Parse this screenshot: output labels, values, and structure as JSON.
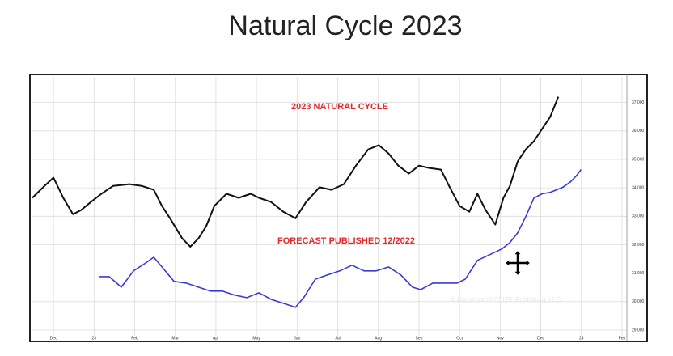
{
  "chart_data": {
    "type": "line",
    "title": "Natural Cycle 2023",
    "annotations": [
      "2023 NATURAL CYCLE",
      "FORECAST PUBLISHED 12/2022",
      "© Copyright 2023 LBL Publishing, LLC"
    ],
    "xlim": [
      -0.58,
      14.12
    ],
    "ylim": [
      28800,
      37900
    ],
    "grid": true,
    "xticks": [
      {
        "value": 0,
        "label": "Dec"
      },
      {
        "value": 1,
        "label": "23"
      },
      {
        "value": 2,
        "label": "Feb"
      },
      {
        "value": 3,
        "label": "Mar"
      },
      {
        "value": 4,
        "label": "Apr"
      },
      {
        "value": 5,
        "label": "May"
      },
      {
        "value": 6,
        "label": "Jun"
      },
      {
        "value": 7,
        "label": "Jul"
      },
      {
        "value": 8,
        "label": "Aug"
      },
      {
        "value": 9,
        "label": "Sep"
      },
      {
        "value": 10,
        "label": "Oct"
      },
      {
        "value": 11,
        "label": "Nov"
      },
      {
        "value": 12,
        "label": "Dec"
      },
      {
        "value": 13,
        "label": "24"
      },
      {
        "value": 14,
        "label": "Feb"
      }
    ],
    "yticks": [
      {
        "value": 29000,
        "label": "29,000"
      },
      {
        "value": 30000,
        "label": "30,000"
      },
      {
        "value": 31000,
        "label": "31,000"
      },
      {
        "value": 32000,
        "label": "32,000"
      },
      {
        "value": 33000,
        "label": "33,000"
      },
      {
        "value": 34000,
        "label": "34,000"
      },
      {
        "value": 35000,
        "label": "35,000"
      },
      {
        "value": 36000,
        "label": "36,000"
      },
      {
        "value": 37000,
        "label": "37,000"
      }
    ],
    "series": [
      {
        "color": "#111111",
        "x": [
          -0.52,
          -0.22,
          0,
          0.24,
          0.48,
          0.68,
          0.92,
          1.18,
          1.47,
          1.87,
          2.17,
          2.47,
          2.67,
          2.87,
          3.17,
          3.37,
          3.57,
          3.76,
          3.96,
          4.26,
          4.56,
          4.86,
          5.06,
          5.36,
          5.66,
          5.96,
          6.22,
          6.55,
          6.85,
          7.15,
          7.45,
          7.75,
          8.01,
          8.25,
          8.49,
          8.75,
          9.0,
          9.24,
          9.54,
          9.74,
          10.0,
          10.24,
          10.44,
          10.64,
          10.88,
          11.08,
          11.24,
          11.43,
          11.63,
          11.83,
          12.03,
          12.23,
          12.43
        ],
        "values": [
          33650,
          34070,
          34360,
          33650,
          33070,
          33220,
          33500,
          33790,
          34070,
          34130,
          34070,
          33930,
          33360,
          32930,
          32220,
          31930,
          32220,
          32650,
          33360,
          33790,
          33650,
          33790,
          33650,
          33500,
          33160,
          32930,
          33500,
          34020,
          33930,
          34130,
          34780,
          35350,
          35500,
          35210,
          34780,
          34500,
          34780,
          34700,
          34640,
          34070,
          33360,
          33160,
          33790,
          33220,
          32710,
          33650,
          34070,
          34930,
          35350,
          35640,
          36070,
          36490,
          37200
        ]
      },
      {
        "color": "#3a3ad6",
        "x": [
          1.12,
          1.37,
          1.67,
          1.97,
          2.27,
          2.47,
          2.67,
          2.97,
          3.27,
          3.57,
          3.86,
          4.16,
          4.46,
          4.76,
          5.06,
          5.36,
          5.66,
          5.96,
          6.16,
          6.45,
          6.75,
          7.05,
          7.35,
          7.65,
          7.95,
          8.25,
          8.55,
          8.84,
          9.04,
          9.34,
          9.64,
          9.94,
          10.14,
          10.44,
          10.74,
          11.04,
          11.24,
          11.43,
          11.63,
          11.83,
          12.03,
          12.23,
          12.53,
          12.73,
          12.87,
          12.99
        ],
        "values": [
          30880,
          30880,
          30510,
          31080,
          31360,
          31560,
          31220,
          30710,
          30650,
          30510,
          30370,
          30370,
          30230,
          30140,
          30310,
          30080,
          29940,
          29800,
          30140,
          30790,
          30940,
          31080,
          31280,
          31080,
          31080,
          31220,
          30940,
          30510,
          30420,
          30650,
          30650,
          30650,
          30790,
          31450,
          31650,
          31850,
          32080,
          32420,
          32990,
          33640,
          33790,
          33840,
          34010,
          34210,
          34410,
          34640
        ]
      }
    ]
  }
}
